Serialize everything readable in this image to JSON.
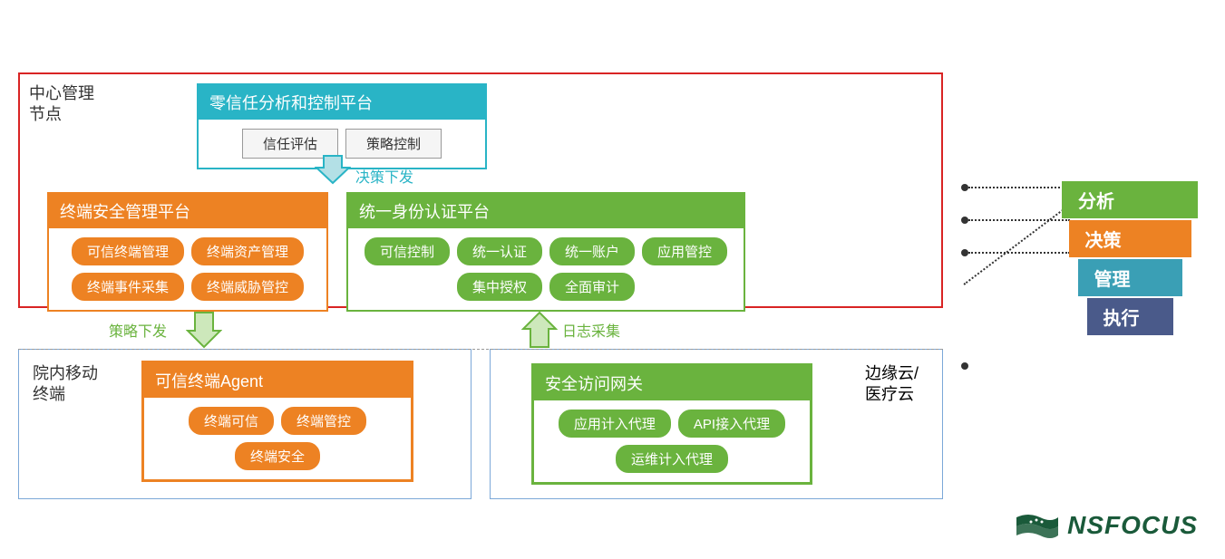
{
  "colors": {
    "red_border": "#d92424",
    "teal": "#29b4c6",
    "orange": "#ed8223",
    "green": "#6ab33e",
    "blue_border": "#7ca8d8",
    "gray_chip_border": "#999999",
    "gray_chip_bg": "#f5f5f5",
    "legend_green": "#6ab33e",
    "legend_orange": "#ed8223",
    "legend_teal": "#3a9fb5",
    "legend_navy": "#4a5a8a",
    "logo_green": "#1a5a3a",
    "text_dark": "#333333"
  },
  "top_zone": {
    "label": "中心管理节点",
    "teal_panel": {
      "title": "零信任分析和控制平台",
      "items": [
        "信任评估",
        "策略控制"
      ]
    },
    "arrow_teal_label": "决策下发",
    "orange_panel": {
      "title": "终端安全管理平台",
      "items": [
        "可信终端管理",
        "终端资产管理",
        "终端事件采集",
        "终端威胁管控"
      ]
    },
    "green_panel": {
      "title": "统一身份认证平台",
      "items": [
        "可信控制",
        "统一认证",
        "统一账户",
        "应用管控",
        "集中授权",
        "全面审计"
      ]
    }
  },
  "mid_arrows": {
    "left_label": "策略下发",
    "right_label": "日志采集"
  },
  "bottom_zone": {
    "left_label": "院内移动终端",
    "right_label": "边缘云/医疗云",
    "orange_panel": {
      "title": "可信终端Agent",
      "items": [
        "终端可信",
        "终端管控",
        "终端安全"
      ]
    },
    "green_panel": {
      "title": "安全访问网关",
      "items": [
        "应用计入代理",
        "API接入代理",
        "运维计入代理"
      ]
    }
  },
  "legend": {
    "items": [
      {
        "label": "分析",
        "color_key": "legend_green",
        "width": 150
      },
      {
        "label": "决策",
        "color_key": "legend_orange",
        "width": 135
      },
      {
        "label": "管理",
        "color_key": "legend_teal",
        "width": 115
      },
      {
        "label": "执行",
        "color_key": "legend_navy",
        "width": 95
      }
    ]
  },
  "logo": {
    "text": "NSFOCUS"
  }
}
